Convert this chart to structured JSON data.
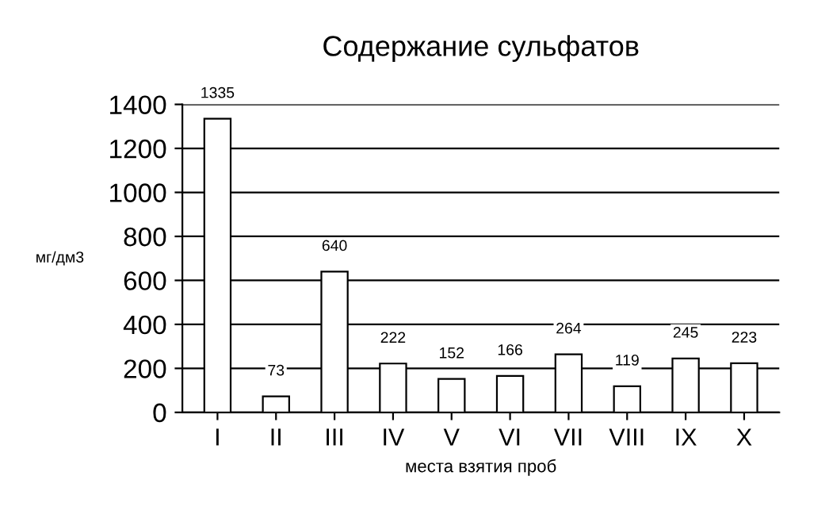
{
  "chart_data": {
    "type": "bar",
    "title": "Содержание сульфатов",
    "xlabel": "места взятия проб",
    "ylabel": "мг/дм3",
    "categories": [
      "I",
      "II",
      "III",
      "IV",
      "V",
      "VI",
      "VII",
      "VIII",
      "IX",
      "X"
    ],
    "values": [
      1335,
      73,
      640,
      222,
      152,
      166,
      264,
      119,
      245,
      223
    ],
    "color": "#ffffff",
    "ylim": [
      0,
      1400
    ],
    "yticks": [
      0,
      200,
      400,
      600,
      800,
      1000,
      1200,
      1400
    ],
    "grid": "y",
    "data_labels": true
  }
}
